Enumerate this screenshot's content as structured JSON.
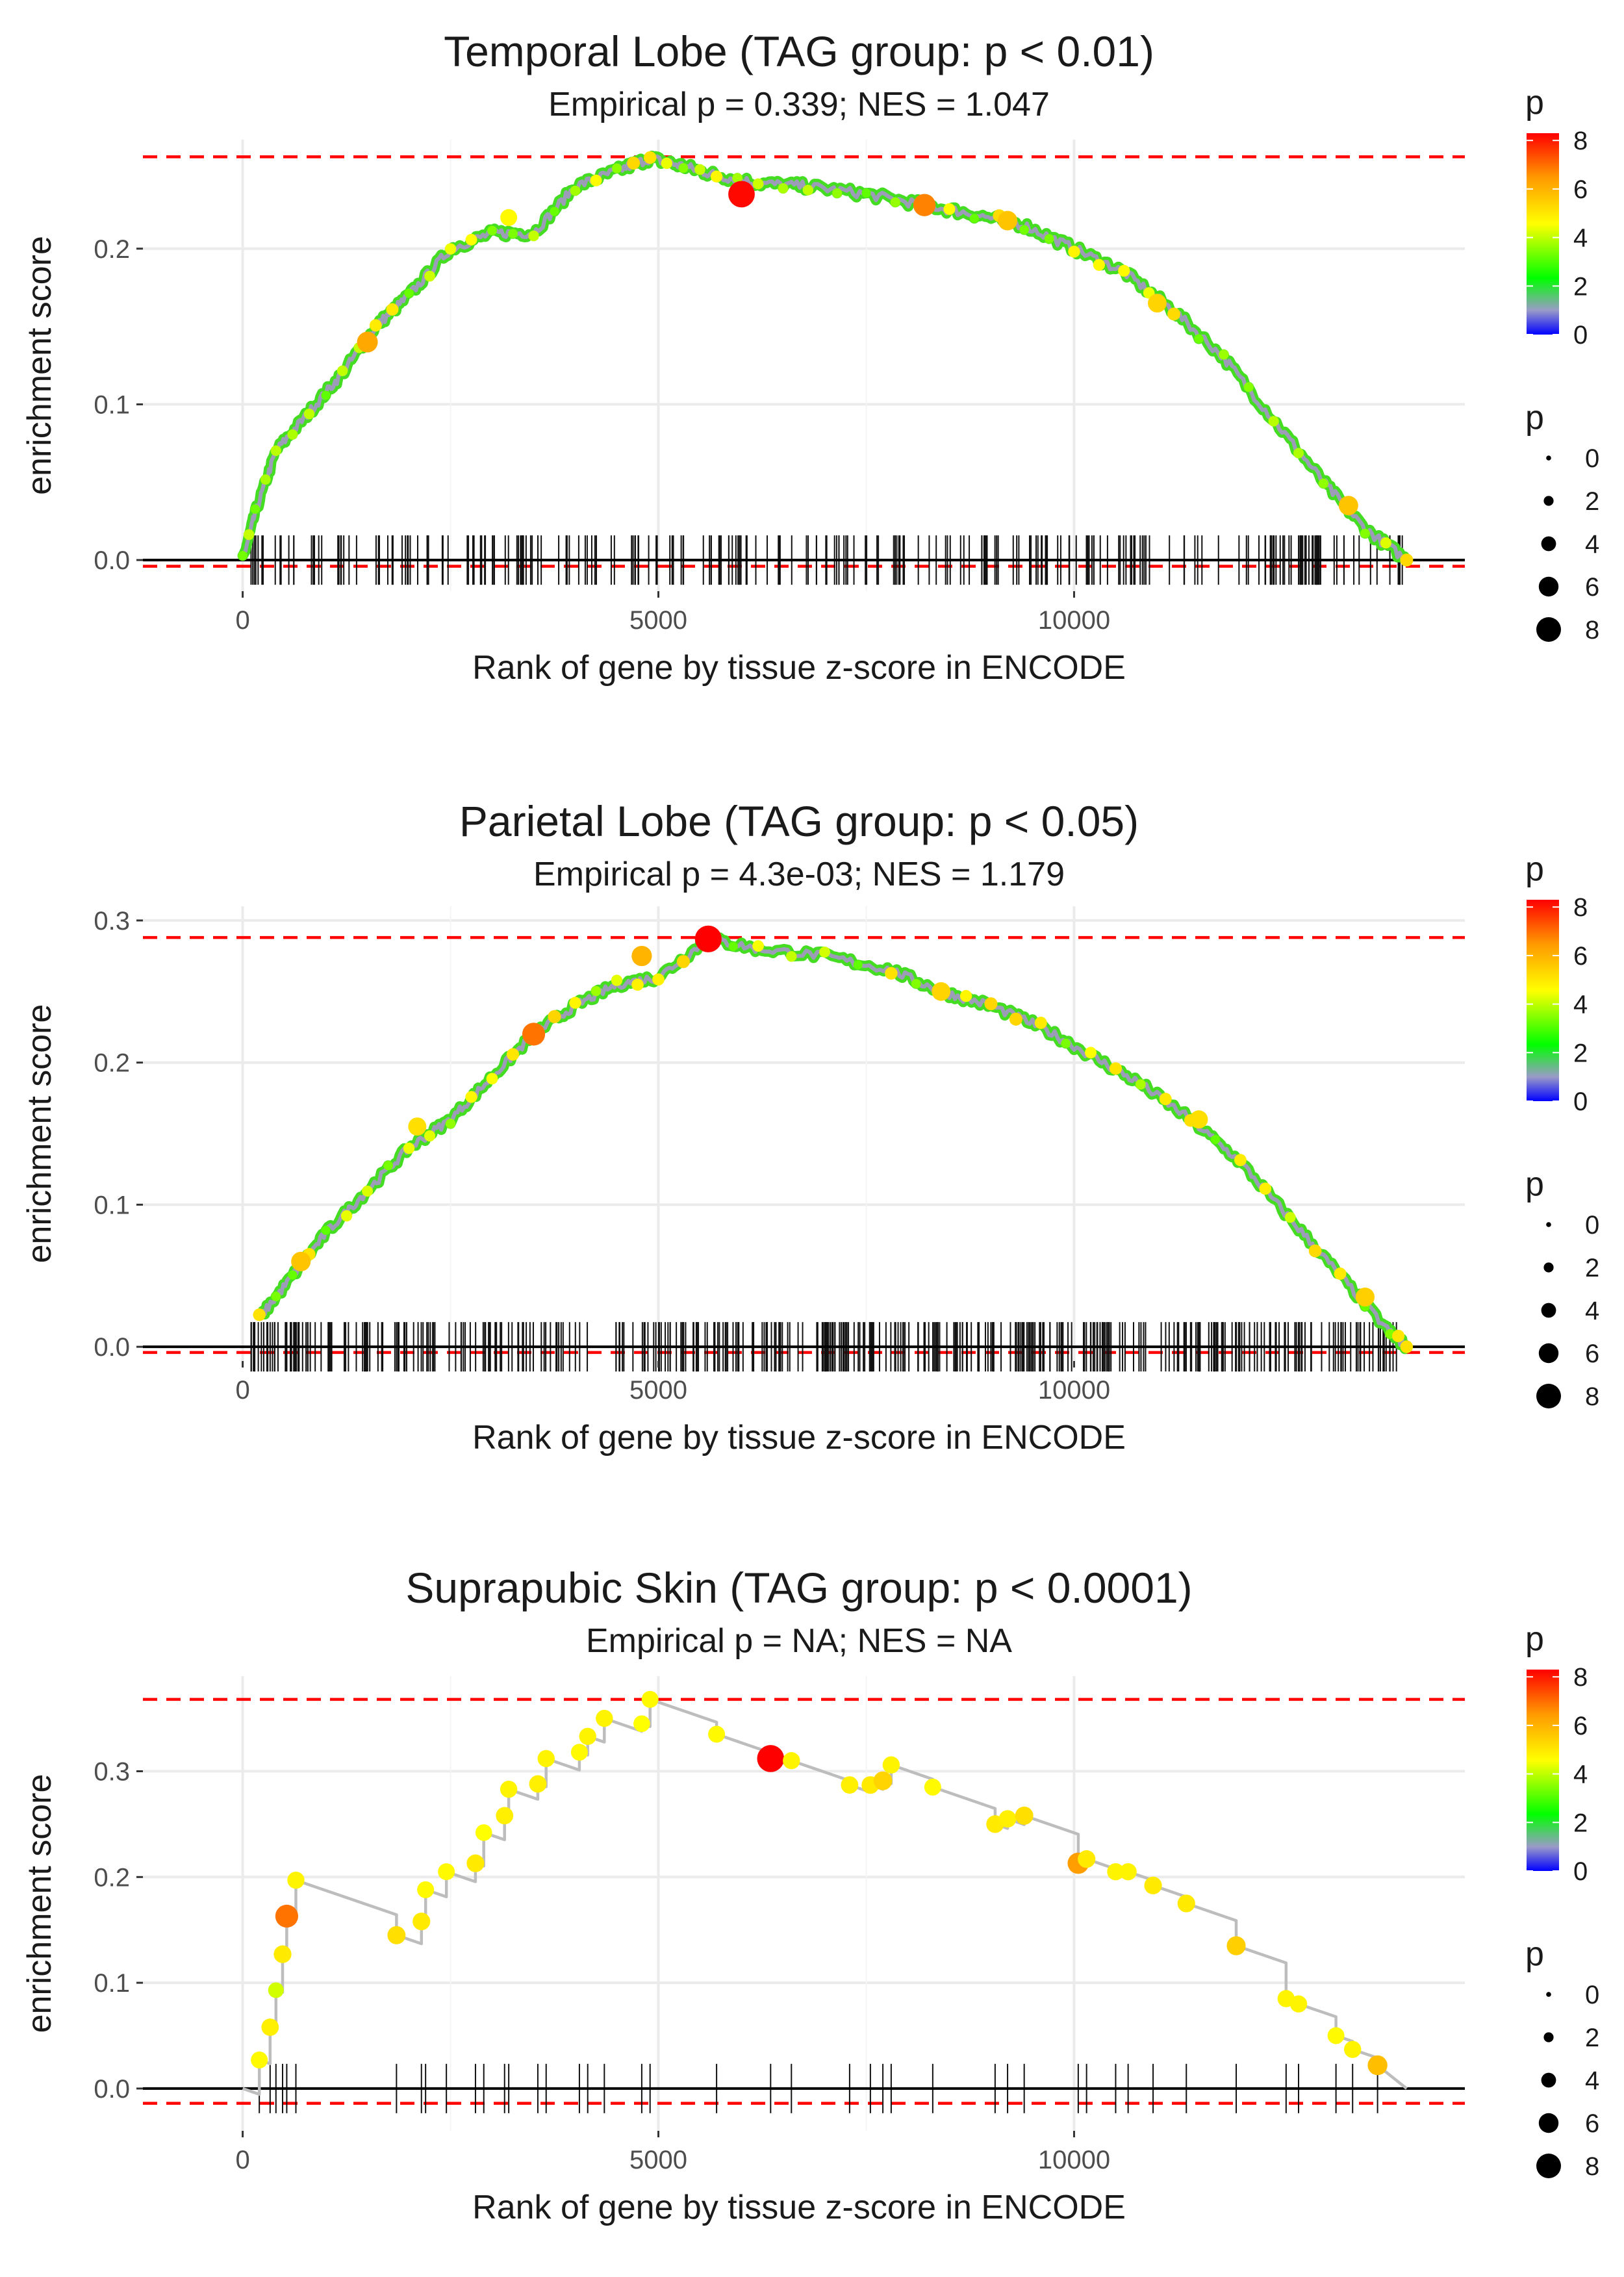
{
  "panels": [
    {
      "title": "Temporal Lobe (TAG group: p < 0.01)",
      "subtitle": "Empirical p = 0.339; NES = 1.047",
      "xlabel": "Rank of gene by tissue z-score in ENCODE",
      "ylabel": "enrichment score",
      "color_legend_title": "p",
      "size_legend_title": "p"
    },
    {
      "title": "Parietal Lobe (TAG group: p < 0.05)",
      "subtitle": "Empirical p = 4.3e-03; NES = 1.179",
      "xlabel": "Rank of gene by tissue z-score in ENCODE",
      "ylabel": "enrichment score",
      "color_legend_title": "p",
      "size_legend_title": "p"
    },
    {
      "title": "Suprapubic Skin (TAG group: p < 0.0001)",
      "subtitle": "Empirical p = NA; NES = NA",
      "xlabel": "Rank of gene by tissue z-score in ENCODE",
      "ylabel": "enrichment score",
      "color_legend_title": "p",
      "size_legend_title": "p"
    }
  ],
  "chart_data": [
    {
      "type": "line",
      "title": "Temporal Lobe (TAG group: p < 0.01)",
      "subtitle": "Empirical p = 0.339; NES = 1.047",
      "xlabel": "Rank of gene by tissue z-score in ENCODE",
      "ylabel": "enrichment score",
      "xlim": [
        -1200,
        14700
      ],
      "ylim": [
        -0.02,
        0.27
      ],
      "x_ticks": [
        0,
        5000,
        10000
      ],
      "y_ticks": [
        0.0,
        0.1,
        0.2
      ],
      "ref_lines": {
        "max_es": 0.259,
        "min_es": -0.004
      },
      "curve": [
        [
          0,
          0.0
        ],
        [
          150,
          0.03
        ],
        [
          400,
          0.07
        ],
        [
          800,
          0.095
        ],
        [
          1200,
          0.12
        ],
        [
          1600,
          0.15
        ],
        [
          2000,
          0.17
        ],
        [
          2500,
          0.2
        ],
        [
          3000,
          0.21
        ],
        [
          3500,
          0.21
        ],
        [
          4000,
          0.24
        ],
        [
          4500,
          0.25
        ],
        [
          4900,
          0.258
        ],
        [
          5300,
          0.253
        ],
        [
          5700,
          0.247
        ],
        [
          6200,
          0.242
        ],
        [
          6800,
          0.24
        ],
        [
          7500,
          0.235
        ],
        [
          8200,
          0.228
        ],
        [
          8800,
          0.222
        ],
        [
          9400,
          0.215
        ],
        [
          10000,
          0.2
        ],
        [
          10600,
          0.185
        ],
        [
          11200,
          0.16
        ],
        [
          11800,
          0.13
        ],
        [
          12400,
          0.09
        ],
        [
          13000,
          0.05
        ],
        [
          13500,
          0.02
        ],
        [
          14000,
          0.0
        ]
      ],
      "highlight_points": [
        {
          "x": 6000,
          "y": 0.235,
          "p": 8.2
        },
        {
          "x": 8200,
          "y": 0.228,
          "p": 6.6
        },
        {
          "x": 9200,
          "y": 0.218,
          "p": 5.5
        },
        {
          "x": 1500,
          "y": 0.14,
          "p": 6.0
        },
        {
          "x": 3200,
          "y": 0.22,
          "p": 4.5
        },
        {
          "x": 11000,
          "y": 0.165,
          "p": 5.2
        },
        {
          "x": 13300,
          "y": 0.035,
          "p": 5.5
        }
      ],
      "rug": {
        "start": 100,
        "end": 14000,
        "count": 260
      },
      "color_scale": {
        "title": "p",
        "ticks": [
          0,
          2,
          4,
          6,
          8
        ],
        "colors": [
          "#0000ff",
          "#a0a0a0",
          "#00ff00",
          "#ffff00",
          "#ff8000",
          "#ff0000"
        ]
      },
      "size_scale": {
        "title": "p",
        "ticks": [
          0,
          2,
          4,
          6,
          8
        ]
      }
    },
    {
      "type": "line",
      "title": "Parietal Lobe (TAG group: p < 0.05)",
      "subtitle": "Empirical p = 4.3e-03; NES = 1.179",
      "xlabel": "Rank of gene by tissue z-score in ENCODE",
      "ylabel": "enrichment score",
      "xlim": [
        -1200,
        14700
      ],
      "ylim": [
        -0.01,
        0.31
      ],
      "x_ticks": [
        0,
        5000,
        10000
      ],
      "y_ticks": [
        0.0,
        0.1,
        0.2,
        0.3
      ],
      "ref_lines": {
        "max_es": 0.288,
        "min_es": -0.004
      },
      "curve": [
        [
          200,
          0.02
        ],
        [
          600,
          0.05
        ],
        [
          1000,
          0.08
        ],
        [
          1500,
          0.11
        ],
        [
          2000,
          0.14
        ],
        [
          2500,
          0.16
        ],
        [
          3000,
          0.19
        ],
        [
          3500,
          0.22
        ],
        [
          4000,
          0.24
        ],
        [
          4500,
          0.255
        ],
        [
          5000,
          0.26
        ],
        [
          5600,
          0.287
        ],
        [
          6200,
          0.28
        ],
        [
          7000,
          0.275
        ],
        [
          7800,
          0.265
        ],
        [
          8400,
          0.25
        ],
        [
          9000,
          0.24
        ],
        [
          9600,
          0.225
        ],
        [
          10200,
          0.205
        ],
        [
          10800,
          0.185
        ],
        [
          11400,
          0.16
        ],
        [
          12000,
          0.13
        ],
        [
          12600,
          0.09
        ],
        [
          13200,
          0.05
        ],
        [
          13800,
          0.01
        ],
        [
          14000,
          0.0
        ]
      ],
      "highlight_points": [
        {
          "x": 5600,
          "y": 0.287,
          "p": 8.3
        },
        {
          "x": 3500,
          "y": 0.22,
          "p": 6.8
        },
        {
          "x": 8400,
          "y": 0.25,
          "p": 5.2
        },
        {
          "x": 700,
          "y": 0.06,
          "p": 5.5
        },
        {
          "x": 4800,
          "y": 0.275,
          "p": 5.8
        },
        {
          "x": 11500,
          "y": 0.16,
          "p": 5.0
        },
        {
          "x": 13500,
          "y": 0.035,
          "p": 5.3
        },
        {
          "x": 2100,
          "y": 0.155,
          "p": 5.0
        }
      ],
      "rug": {
        "start": 100,
        "end": 14000,
        "count": 420
      },
      "color_scale": {
        "title": "p",
        "ticks": [
          0,
          2,
          4,
          6,
          8
        ],
        "colors": [
          "#0000ff",
          "#a0a0a0",
          "#00ff00",
          "#ffff00",
          "#ff8000",
          "#ff0000"
        ]
      },
      "size_scale": {
        "title": "p",
        "ticks": [
          0,
          2,
          4,
          6,
          8
        ]
      }
    },
    {
      "type": "line",
      "title": "Suprapubic Skin (TAG group: p < 0.0001)",
      "subtitle": "Empirical p = NA; NES = NA",
      "xlabel": "Rank of gene by tissue z-score in ENCODE",
      "ylabel": "enrichment score",
      "xlim": [
        -1200,
        14700
      ],
      "ylim": [
        -0.04,
        0.39
      ],
      "x_ticks": [
        0,
        5000,
        10000
      ],
      "y_ticks": [
        0.0,
        0.1,
        0.2,
        0.3
      ],
      "ref_lines": {
        "max_es": 0.368,
        "min_es": -0.014
      },
      "points": [
        {
          "x": 200,
          "y": 0.027,
          "p": 4.5
        },
        {
          "x": 330,
          "y": 0.058,
          "p": 4.7
        },
        {
          "x": 400,
          "y": 0.093,
          "p": 4.0
        },
        {
          "x": 480,
          "y": 0.127,
          "p": 4.8
        },
        {
          "x": 530,
          "y": 0.163,
          "p": 6.8
        },
        {
          "x": 640,
          "y": 0.197,
          "p": 4.6
        },
        {
          "x": 1850,
          "y": 0.145,
          "p": 5.0
        },
        {
          "x": 2150,
          "y": 0.158,
          "p": 4.8
        },
        {
          "x": 2200,
          "y": 0.188,
          "p": 4.5
        },
        {
          "x": 2450,
          "y": 0.205,
          "p": 4.5
        },
        {
          "x": 2800,
          "y": 0.213,
          "p": 4.8
        },
        {
          "x": 2900,
          "y": 0.242,
          "p": 4.4
        },
        {
          "x": 3150,
          "y": 0.258,
          "p": 4.7
        },
        {
          "x": 3200,
          "y": 0.283,
          "p": 4.6
        },
        {
          "x": 3550,
          "y": 0.288,
          "p": 4.7
        },
        {
          "x": 3650,
          "y": 0.312,
          "p": 4.6
        },
        {
          "x": 4050,
          "y": 0.318,
          "p": 4.5
        },
        {
          "x": 4150,
          "y": 0.333,
          "p": 4.6
        },
        {
          "x": 4350,
          "y": 0.35,
          "p": 4.6
        },
        {
          "x": 4800,
          "y": 0.345,
          "p": 4.4
        },
        {
          "x": 4900,
          "y": 0.368,
          "p": 4.5
        },
        {
          "x": 5700,
          "y": 0.335,
          "p": 4.5
        },
        {
          "x": 6350,
          "y": 0.312,
          "p": 8.4
        },
        {
          "x": 6600,
          "y": 0.31,
          "p": 4.6
        },
        {
          "x": 7300,
          "y": 0.287,
          "p": 4.7
        },
        {
          "x": 7550,
          "y": 0.287,
          "p": 4.8
        },
        {
          "x": 7700,
          "y": 0.291,
          "p": 5.2
        },
        {
          "x": 7800,
          "y": 0.306,
          "p": 4.6
        },
        {
          "x": 8300,
          "y": 0.285,
          "p": 4.5
        },
        {
          "x": 9050,
          "y": 0.25,
          "p": 4.8
        },
        {
          "x": 9200,
          "y": 0.255,
          "p": 4.7
        },
        {
          "x": 9400,
          "y": 0.258,
          "p": 5.0
        },
        {
          "x": 10050,
          "y": 0.213,
          "p": 6.2
        },
        {
          "x": 10150,
          "y": 0.217,
          "p": 4.8
        },
        {
          "x": 10500,
          "y": 0.205,
          "p": 4.6
        },
        {
          "x": 10650,
          "y": 0.205,
          "p": 4.6
        },
        {
          "x": 10950,
          "y": 0.192,
          "p": 4.8
        },
        {
          "x": 11350,
          "y": 0.175,
          "p": 4.8
        },
        {
          "x": 11950,
          "y": 0.135,
          "p": 5.3
        },
        {
          "x": 12550,
          "y": 0.085,
          "p": 4.6
        },
        {
          "x": 12700,
          "y": 0.08,
          "p": 4.6
        },
        {
          "x": 13150,
          "y": 0.05,
          "p": 4.5
        },
        {
          "x": 13350,
          "y": 0.037,
          "p": 4.6
        },
        {
          "x": 13650,
          "y": 0.022,
          "p": 5.6
        }
      ],
      "curve_end": [
        14000,
        0.0
      ],
      "color_scale": {
        "title": "p",
        "ticks": [
          0,
          2,
          4,
          6,
          8
        ],
        "colors": [
          "#0000ff",
          "#a0a0a0",
          "#00ff00",
          "#ffff00",
          "#ff8000",
          "#ff0000"
        ]
      },
      "size_scale": {
        "title": "p",
        "ticks": [
          0,
          2,
          4,
          6,
          8
        ]
      }
    }
  ]
}
